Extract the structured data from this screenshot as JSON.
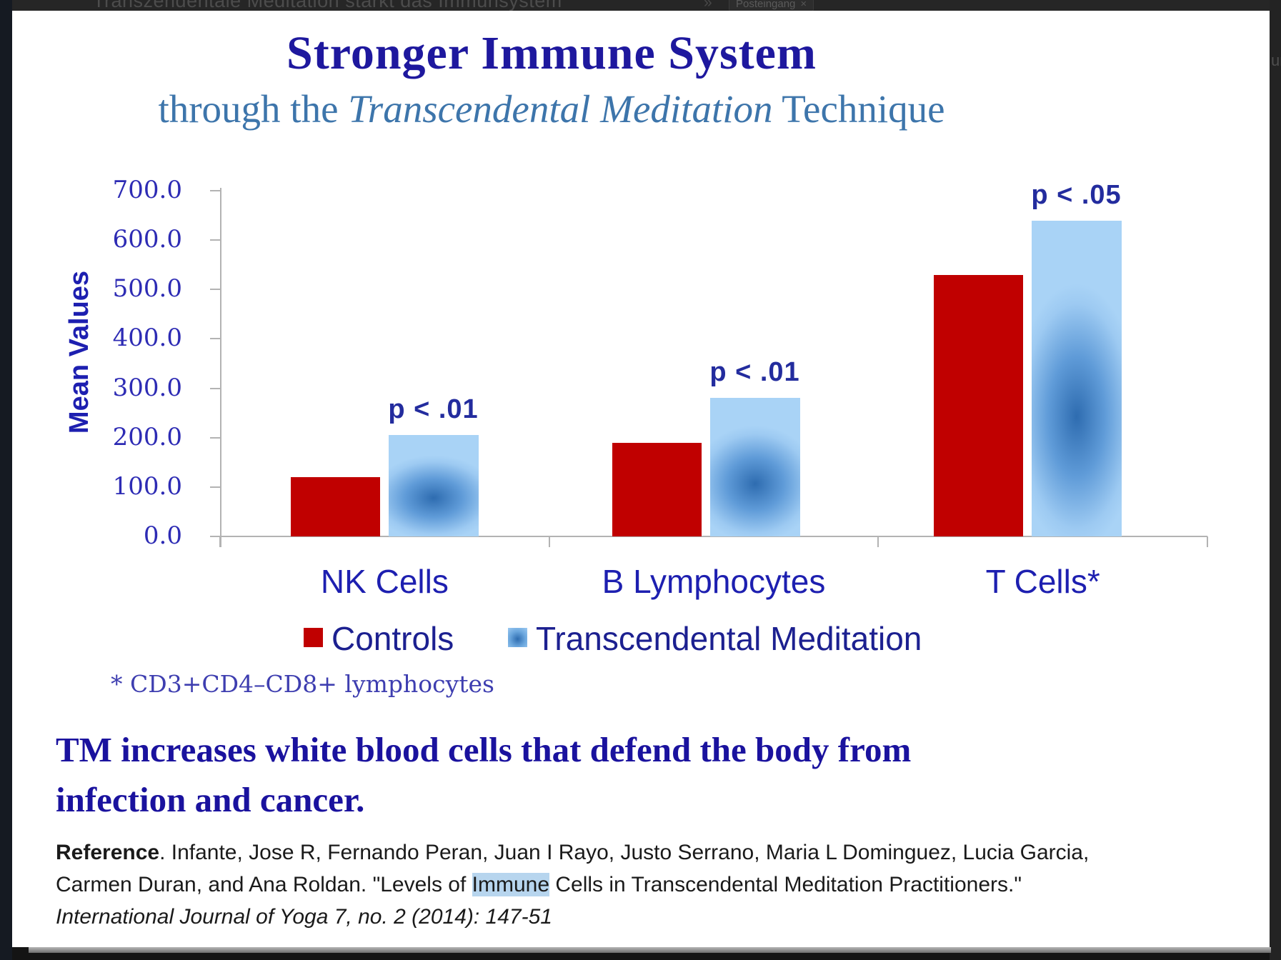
{
  "overlay": {
    "email_subject": "Transzendentale Meditation stärkt das Immunsystem",
    "expand_icon": "»",
    "inbox_label": "Posteingang",
    "inbox_label_close": "×",
    "right_text_fragment": "un"
  },
  "slide": {
    "title": "Stronger Immune System",
    "subtitle": {
      "prefix": "through the ",
      "italic": "Transcendental Meditation",
      "suffix": " Technique"
    },
    "footnote": "* CD3+CD4–CD8+ lymphocytes",
    "heading": {
      "line1": "TM increases white blood cells that defend the body from",
      "line2": "infection and cancer."
    },
    "reference": {
      "label": "Reference",
      "text_before_highlight": ". Infante, Jose R, Fernando Peran, Juan I Rayo, Justo Serrano, Maria L Dominguez, Lucia Garcia, Carmen Duran, and Ana Roldan. \"Levels of ",
      "highlight": "Immune",
      "text_after_highlight": " Cells in Transcendental Meditation Practitioners.\" ",
      "citation_italic": "International Journal of Yoga 7, no. 2 (2014): 147-51"
    }
  },
  "chart_data": {
    "type": "bar",
    "title": "Stronger Immune System through the Transcendental Meditation Technique",
    "categories": [
      "NK Cells",
      "B Lymphocytes",
      "T Cells*"
    ],
    "series": [
      {
        "name": "Controls",
        "values": [
          120,
          190,
          530
        ]
      },
      {
        "name": "Transcendental Meditation",
        "values": [
          205,
          280,
          640
        ]
      }
    ],
    "annotations": [
      "p < .01",
      "p < .01",
      "p < .05"
    ],
    "ylabel": "Mean Values",
    "xlabel": "",
    "ylim": [
      0,
      700
    ],
    "ytick_step": 100,
    "ytick_decimals": 1,
    "grid": false,
    "legend_position": "bottom"
  },
  "colors": {
    "controls_red": "#c00000",
    "tm_blue_light": "#9dcaf2",
    "tm_blue_dark": "#2e6cb0",
    "title_blue": "#1e189e",
    "subtitle_blue": "#3d75ab",
    "axis_text_blue": "#2d2bb4",
    "axis_line_gray": "#b3b3b3",
    "highlight_bg": "#b7d5ee"
  }
}
